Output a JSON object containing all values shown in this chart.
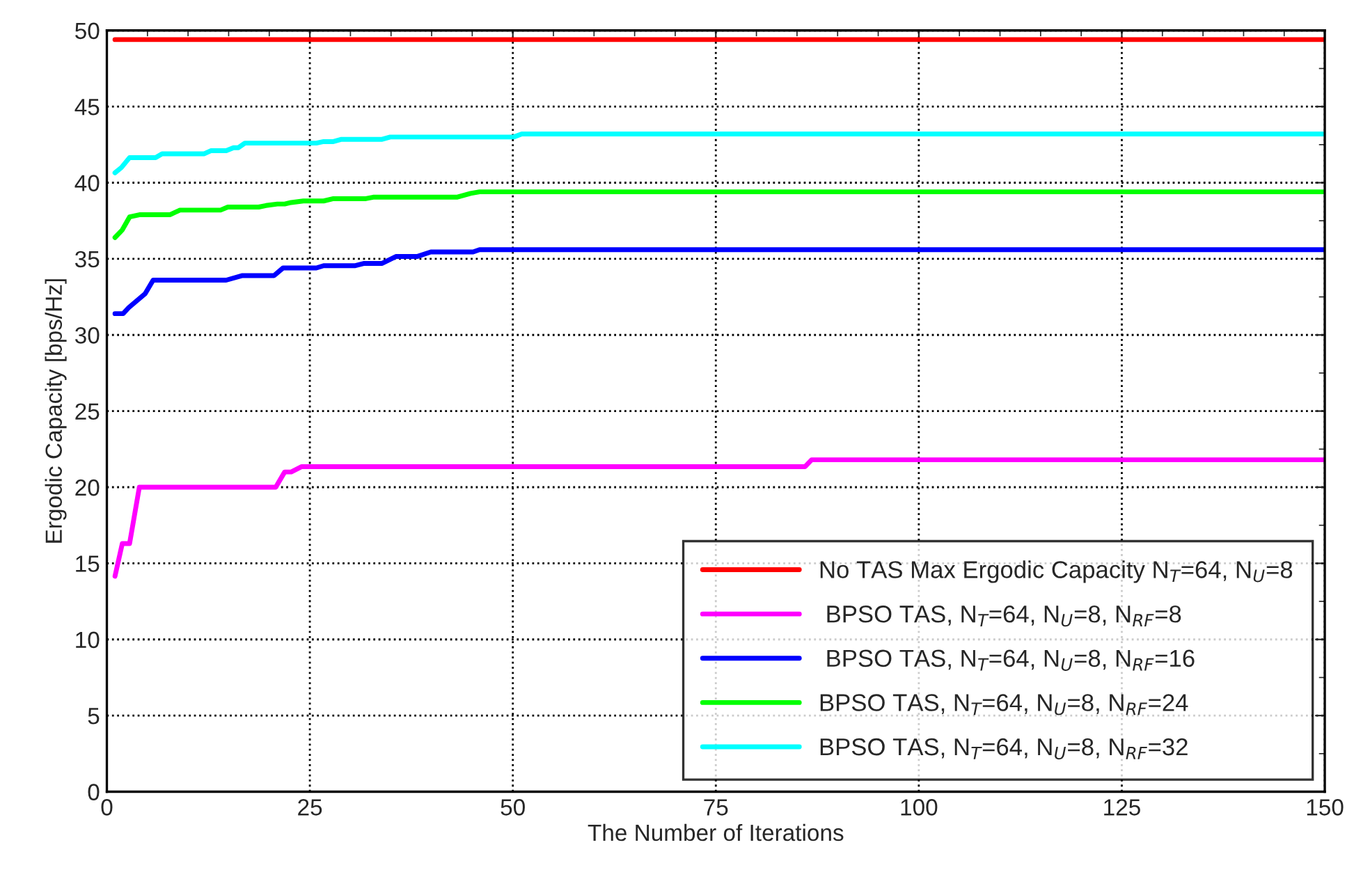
{
  "chart_data": {
    "type": "line",
    "xlabel": "The Number of Iterations",
    "ylabel": "Ergodic Capacity [bps/Hz]",
    "xlim": [
      0,
      150
    ],
    "xticks": [
      0,
      25,
      50,
      75,
      100,
      125,
      150
    ],
    "ylim": [
      0,
      50
    ],
    "yticks": [
      0,
      5,
      10,
      15,
      20,
      25,
      30,
      35,
      40,
      45,
      50
    ],
    "grid": true,
    "legend": "bottom right",
    "line_style": "solid",
    "marker": "none",
    "series": [
      {
        "name": "No TAS Max Ergodic Capacity N$_{T}$=64, N$_{U}$=8",
        "color": "#ff0000",
        "x": [
          1,
          150
        ],
        "values": [
          49.4,
          49.4
        ]
      },
      {
        "name": " BPSO TAS, N$_{T}$=64, N$_{U}$=8, N$_{RF}$=8",
        "color": "#ff00ff",
        "x": [
          1,
          1.9,
          2.8,
          4,
          20.8,
          21.9,
          22.7,
          24,
          86,
          86.8,
          150
        ],
        "values": [
          14.15,
          16.3,
          16.3,
          20,
          20,
          21,
          21,
          21.35,
          21.35,
          21.8,
          21.8
        ]
      },
      {
        "name": " BPSO TAS, N$_{T}$=64, N$_{U}$=8, N$_{RF}$=16",
        "color": "#0000ff",
        "x": [
          1,
          2,
          2.7,
          4.7,
          5.7,
          14.7,
          16.7,
          20.6,
          21.7,
          25.8,
          26.7,
          30.6,
          31.7,
          33.9,
          35.6,
          38.2,
          39.9,
          45.1,
          45.9,
          150
        ],
        "values": [
          31.4,
          31.4,
          31.8,
          32.7,
          33.6,
          33.6,
          33.9,
          33.9,
          34.4,
          34.4,
          34.55,
          34.55,
          34.7,
          34.7,
          35.15,
          35.15,
          35.45,
          35.45,
          35.6,
          35.6
        ]
      },
      {
        "name": "BPSO TAS, N$_{T}$=64, N$_{U}$=8, N$_{RF}$=24",
        "color": "#00ff00",
        "x": [
          1,
          1.9,
          2.8,
          4.1,
          7.8,
          9,
          14,
          14.9,
          18.7,
          19.6,
          21,
          21.9,
          22.7,
          24.2,
          26.7,
          27.9,
          31.9,
          32.8,
          43.1,
          44.8,
          45.9,
          150
        ],
        "values": [
          36.4,
          36.9,
          37.75,
          37.9,
          37.9,
          38.2,
          38.2,
          38.4,
          38.4,
          38.5,
          38.6,
          38.6,
          38.7,
          38.8,
          38.8,
          38.95,
          38.95,
          39.05,
          39.05,
          39.3,
          39.4,
          39.4
        ]
      },
      {
        "name": "BPSO TAS, N$_{T}$=64, N$_{U}$=8, N$_{RF}$=32",
        "color": "#00ffff",
        "x": [
          1,
          1.8,
          2.8,
          6,
          6.8,
          12,
          12.8,
          14.7,
          15.6,
          16.2,
          17,
          25.8,
          26.7,
          27.9,
          28.9,
          33.9,
          34.9,
          50.1,
          51.1,
          150
        ],
        "values": [
          40.65,
          41,
          41.65,
          41.65,
          41.9,
          41.9,
          42.1,
          42.1,
          42.3,
          42.3,
          42.6,
          42.6,
          42.7,
          42.7,
          42.85,
          42.85,
          43,
          43,
          43.2,
          43.2
        ]
      }
    ]
  }
}
